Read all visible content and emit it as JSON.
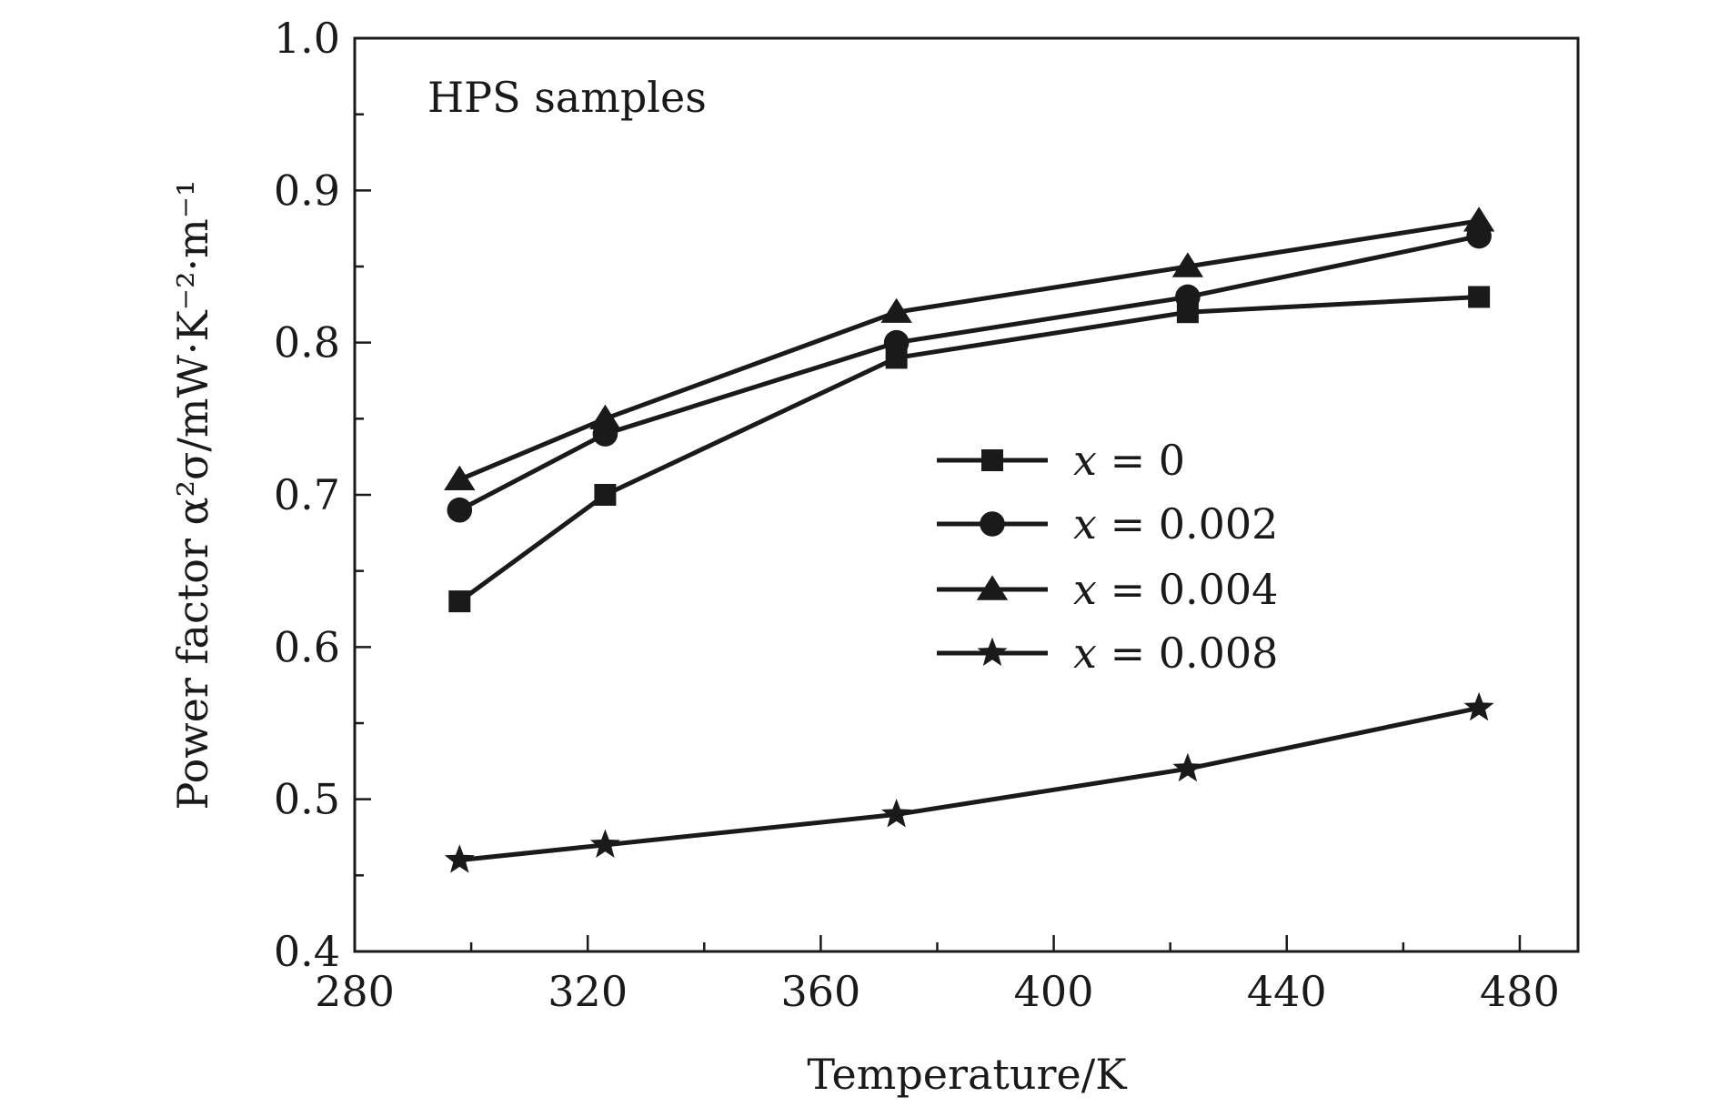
{
  "chart_data": {
    "type": "line",
    "title": "",
    "xlabel": "Temperature/K",
    "ylabel": "Power factor α²σ/mW·K⁻²·m⁻¹",
    "xlim": [
      280,
      490
    ],
    "ylim": [
      0.4,
      1.0
    ],
    "xticks": [
      280,
      320,
      360,
      400,
      440,
      480
    ],
    "xtick_labels": [
      "280",
      "320",
      "360",
      "400",
      "440",
      "480"
    ],
    "yticks": [
      0.4,
      0.5,
      0.6,
      0.7,
      0.8,
      0.9,
      1.0
    ],
    "ytick_labels": [
      "0.4",
      "0.5",
      "0.6",
      "0.7",
      "0.8",
      "0.9",
      "1.0"
    ],
    "annotation": "HPS samples",
    "legend_position": "center-right",
    "x": [
      298,
      323,
      373,
      423,
      473
    ],
    "series": [
      {
        "name": "x = 0",
        "var": "x",
        "eq": "= 0",
        "marker": "square",
        "values": [
          0.63,
          0.7,
          0.79,
          0.82,
          0.83
        ]
      },
      {
        "name": "x = 0.002",
        "var": "x",
        "eq": "= 0.002",
        "marker": "circle",
        "values": [
          0.69,
          0.74,
          0.8,
          0.83,
          0.87
        ]
      },
      {
        "name": "x = 0.004",
        "var": "x",
        "eq": "= 0.004",
        "marker": "triangle",
        "values": [
          0.71,
          0.75,
          0.82,
          0.85,
          0.88
        ]
      },
      {
        "name": "x = 0.008",
        "var": "x",
        "eq": "= 0.008",
        "marker": "star",
        "values": [
          0.46,
          0.47,
          0.49,
          0.52,
          0.56
        ]
      }
    ],
    "color": "#1a1a1a"
  }
}
